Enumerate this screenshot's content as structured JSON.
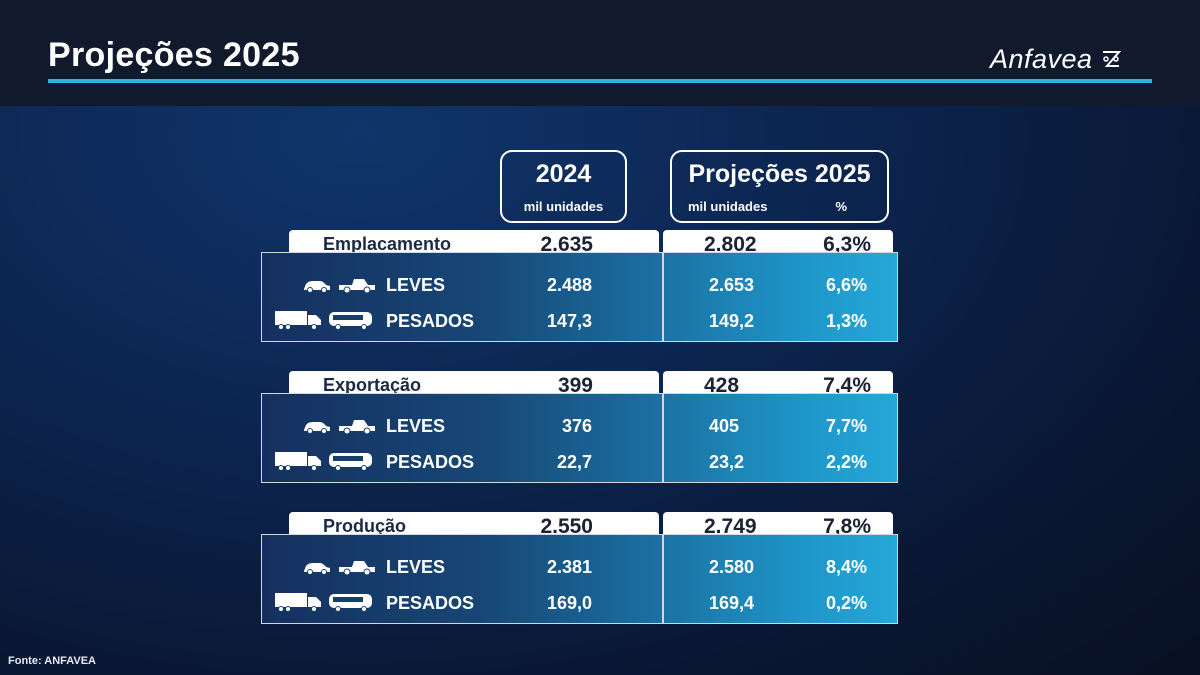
{
  "header": {
    "title": "Projeções 2025",
    "logo_text": "Anfavea"
  },
  "columns": {
    "year_2024": {
      "title": "2024",
      "unit": "mil unidades"
    },
    "proj_2025": {
      "title": "Projeções 2025",
      "unit": "mil unidades",
      "pct": "%"
    }
  },
  "groups": [
    {
      "label": "Emplacamento",
      "v2024": "2.635",
      "v2025": "2.802",
      "pct": "6,3%",
      "rows": [
        {
          "label": "LEVES",
          "v2024": "2.488",
          "v2025": "2.653",
          "pct": "6,6%",
          "icon": "car-pickup-icon"
        },
        {
          "label": "PESADOS",
          "v2024": "147,3",
          "v2025": "149,2",
          "pct": "1,3%",
          "icon": "truck-bus-icon"
        }
      ]
    },
    {
      "label": "Exportação",
      "v2024": "399",
      "v2025": "428",
      "pct": "7,4%",
      "rows": [
        {
          "label": "LEVES",
          "v2024": "376",
          "v2025": "405",
          "pct": "7,7%",
          "icon": "car-pickup-icon"
        },
        {
          "label": "PESADOS",
          "v2024": "22,7",
          "v2025": "23,2",
          "pct": "2,2%",
          "icon": "truck-bus-icon"
        }
      ]
    },
    {
      "label": "Produção",
      "v2024": "2.550",
      "v2025": "2.749",
      "pct": "7,8%",
      "rows": [
        {
          "label": "LEVES",
          "v2024": "2.381",
          "v2025": "2.580",
          "pct": "8,4%",
          "icon": "car-pickup-icon"
        },
        {
          "label": "PESADOS",
          "v2024": "169,0",
          "v2025": "169,4",
          "pct": "0,2%",
          "icon": "truck-bus-icon"
        }
      ]
    }
  ],
  "footer": {
    "source": "Fonte: ANFAVEA"
  },
  "colors": {
    "accent": "#29b6e0",
    "topbar": "#111a2c",
    "panel_end": "#25a8d9"
  }
}
